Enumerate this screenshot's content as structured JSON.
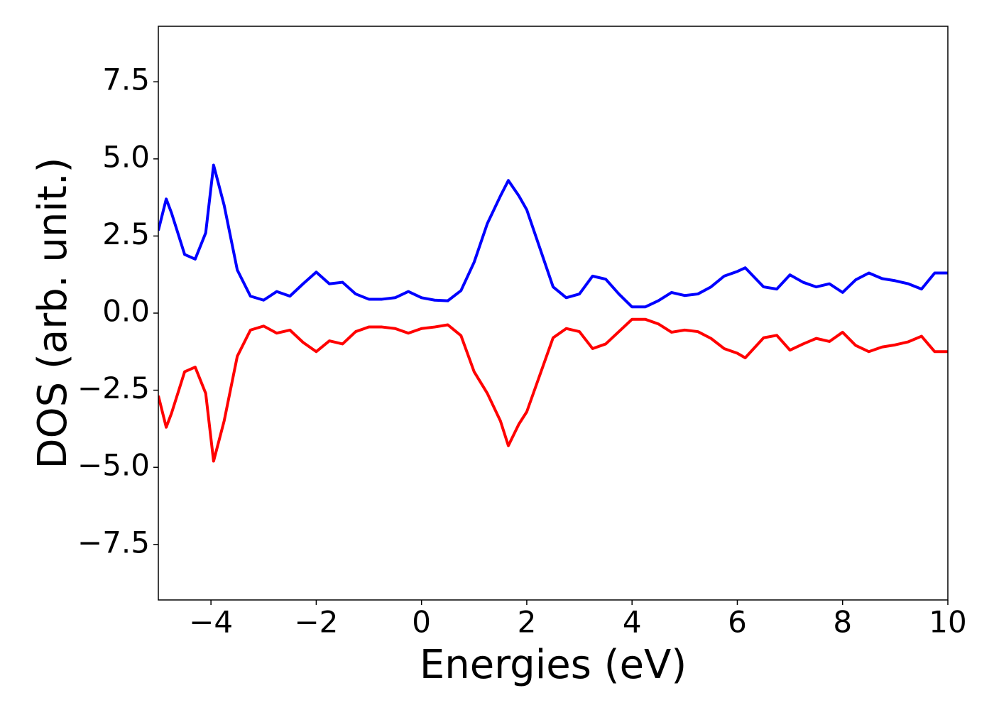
{
  "chart_data": {
    "type": "line",
    "xlabel": "Energies (eV)",
    "ylabel": "DOS (arb. unit.)",
    "x": [
      -5,
      -4.85,
      -4.75,
      -4.5,
      -4.3,
      -4.1,
      -3.95,
      -3.75,
      -3.5,
      -3.25,
      -3,
      -2.75,
      -2.5,
      -2.25,
      -2,
      -1.75,
      -1.5,
      -1.25,
      -1,
      -0.75,
      -0.5,
      -0.25,
      0,
      0.25,
      0.5,
      0.75,
      1,
      1.25,
      1.5,
      1.65,
      1.85,
      2,
      2.25,
      2.5,
      2.75,
      3,
      3.25,
      3.5,
      3.75,
      4,
      4.25,
      4.5,
      4.75,
      5,
      5.25,
      5.5,
      5.75,
      6,
      6.15,
      6.5,
      6.75,
      7,
      7.25,
      7.5,
      7.75,
      8,
      8.25,
      8.5,
      8.75,
      9,
      9.25,
      9.5,
      9.75,
      10
    ],
    "series": [
      {
        "color": "#0000ff",
        "values": [
          2.68,
          3.7,
          3.25,
          1.9,
          1.75,
          2.6,
          4.8,
          3.5,
          1.4,
          0.55,
          0.42,
          0.7,
          0.55,
          0.95,
          1.33,
          0.95,
          1.0,
          0.62,
          0.45,
          0.45,
          0.5,
          0.7,
          0.5,
          0.42,
          0.4,
          0.73,
          1.65,
          2.9,
          3.8,
          4.3,
          3.8,
          3.35,
          2.1,
          0.85,
          0.5,
          0.62,
          1.2,
          1.1,
          0.62,
          0.2,
          0.2,
          0.4,
          0.67,
          0.57,
          0.62,
          0.85,
          1.2,
          1.35,
          1.47,
          0.85,
          0.78,
          1.24,
          1.0,
          0.85,
          0.95,
          0.67,
          1.08,
          1.3,
          1.12,
          1.05,
          0.95,
          0.78,
          1.3,
          1.3
        ]
      },
      {
        "color": "#ff0000",
        "values": [
          -2.68,
          -3.7,
          -3.25,
          -1.9,
          -1.75,
          -2.6,
          -4.8,
          -3.5,
          -1.4,
          -0.55,
          -0.42,
          -0.65,
          -0.55,
          -0.95,
          -1.25,
          -0.9,
          -1.0,
          -0.6,
          -0.45,
          -0.45,
          -0.5,
          -0.65,
          -0.5,
          -0.45,
          -0.38,
          -0.73,
          -1.9,
          -2.6,
          -3.5,
          -4.3,
          -3.6,
          -3.2,
          -2.0,
          -0.8,
          -0.5,
          -0.6,
          -1.15,
          -1.0,
          -0.6,
          -0.2,
          -0.2,
          -0.35,
          -0.62,
          -0.55,
          -0.6,
          -0.82,
          -1.15,
          -1.3,
          -1.45,
          -0.8,
          -0.72,
          -1.2,
          -1.0,
          -0.82,
          -0.92,
          -0.62,
          -1.05,
          -1.25,
          -1.1,
          -1.03,
          -0.93,
          -0.75,
          -1.25,
          -1.25
        ]
      }
    ],
    "xlim": [
      -5,
      10
    ],
    "xticks": [
      {
        "value": -4,
        "label": "−4"
      },
      {
        "value": -2,
        "label": "−2"
      },
      0,
      2,
      4,
      6,
      8,
      10
    ],
    "ylim": [
      -9.3,
      9.3
    ],
    "yticks": [
      {
        "value": -7.5,
        "label": "−7.5"
      },
      {
        "value": -5,
        "label": "−5.0"
      },
      {
        "value": -2.5,
        "label": "−2.5"
      },
      {
        "value": 0,
        "label": "0.0"
      },
      {
        "value": 2.5,
        "label": "2.5"
      },
      {
        "value": 5,
        "label": "5.0"
      },
      {
        "value": 7.5,
        "label": "7.5"
      }
    ],
    "grid": false
  }
}
